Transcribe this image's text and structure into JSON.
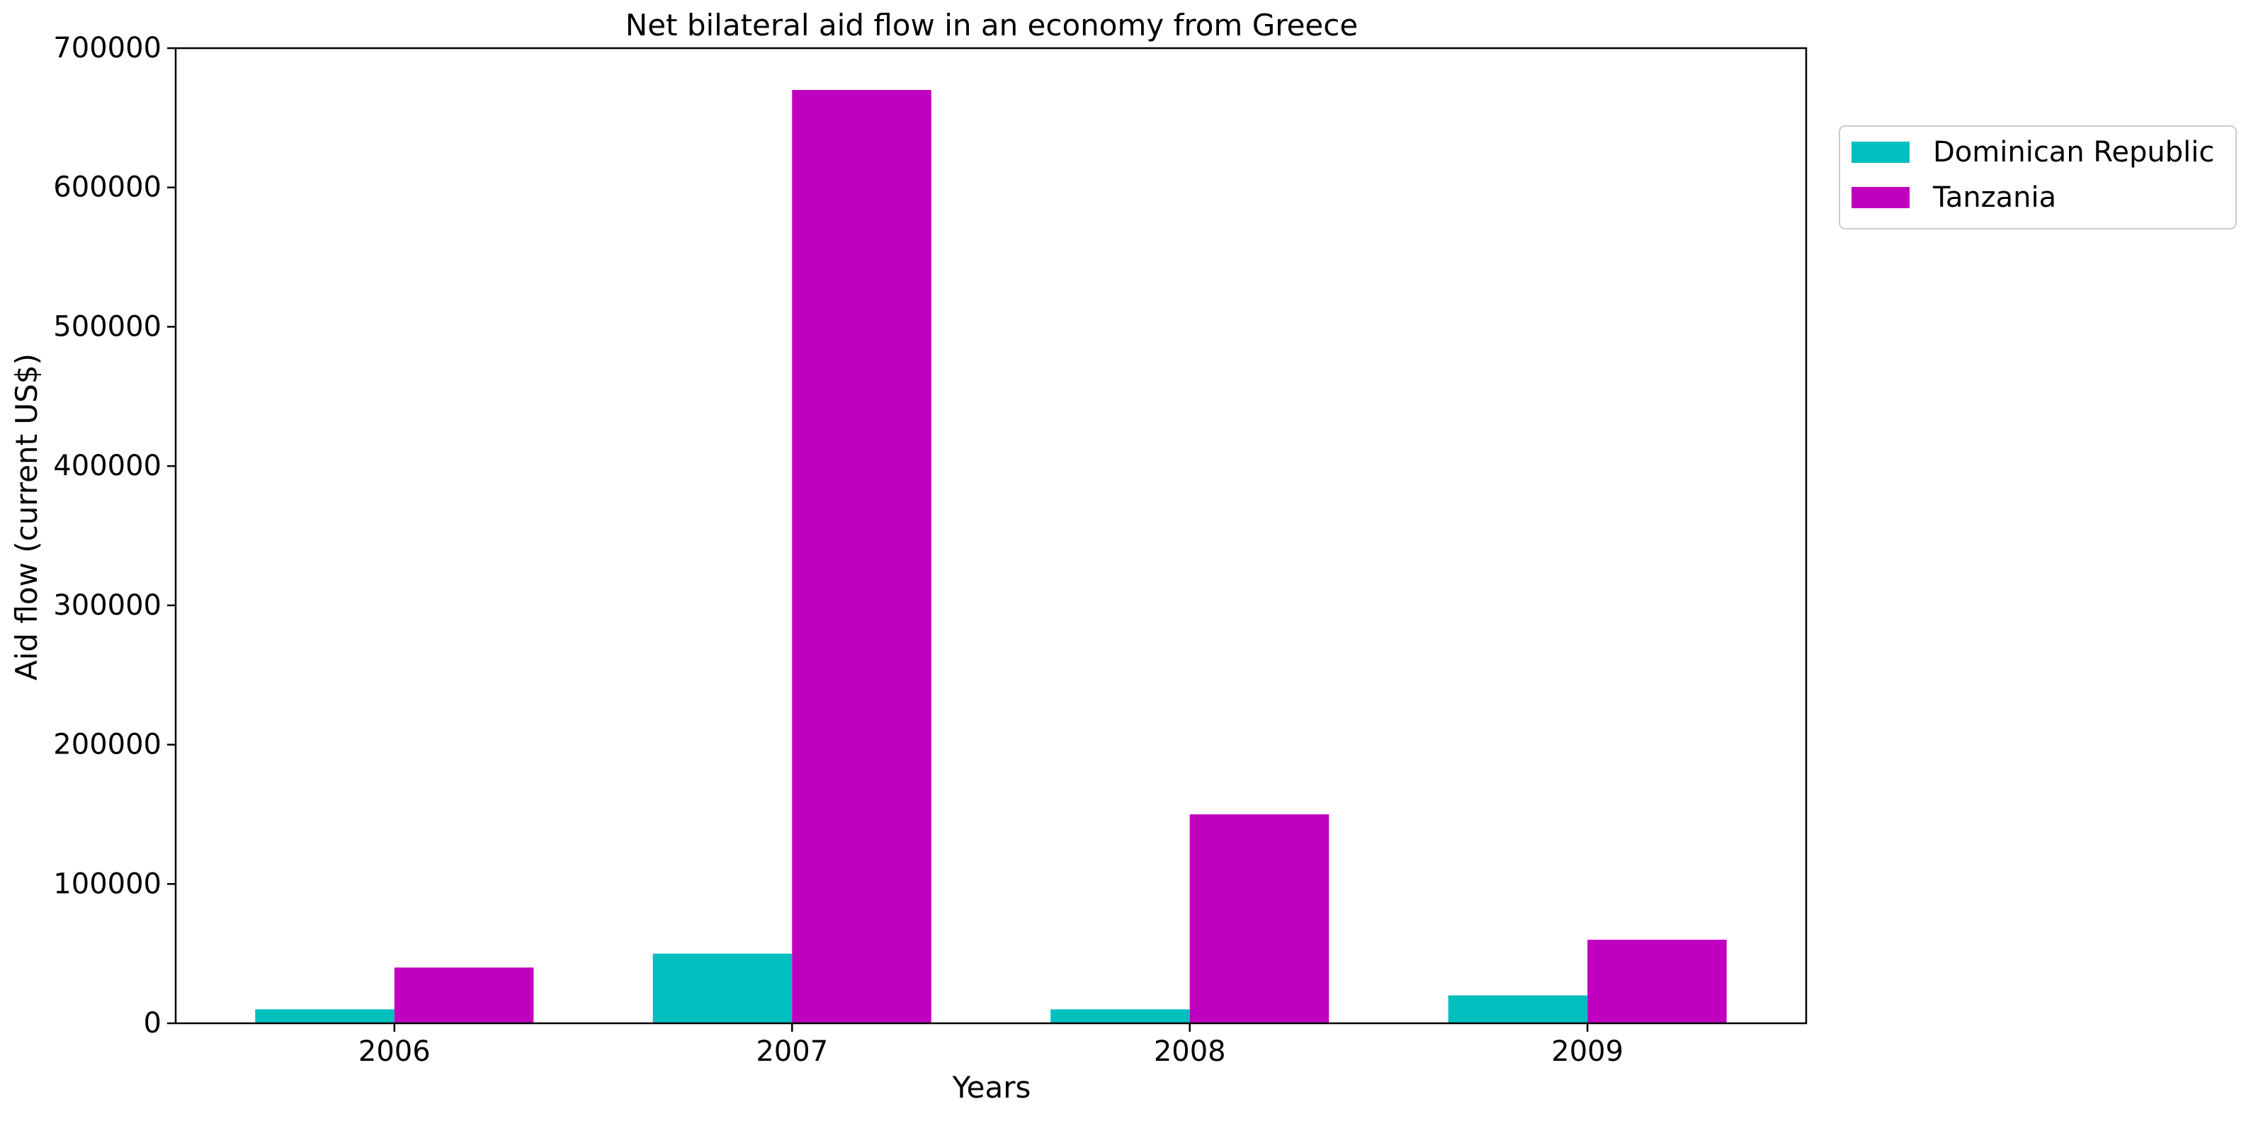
{
  "chart_data": {
    "type": "bar",
    "title": "Net bilateral aid flow in an economy from Greece",
    "xlabel": "Years",
    "ylabel": "Aid flow (current US$)",
    "categories": [
      "2006",
      "2007",
      "2008",
      "2009"
    ],
    "series": [
      {
        "name": "Dominican Republic",
        "color": "#00bfbf",
        "values": [
          10000,
          50000,
          10000,
          20000
        ]
      },
      {
        "name": "Tanzania",
        "color": "#bf00bf",
        "values": [
          40000,
          670000,
          150000,
          60000
        ]
      }
    ],
    "ylim": [
      0,
      700000
    ],
    "yticks": [
      "0",
      "100000",
      "200000",
      "300000",
      "400000",
      "500000",
      "600000",
      "700000"
    ],
    "grid": false,
    "legend_position": "outside right, top"
  }
}
